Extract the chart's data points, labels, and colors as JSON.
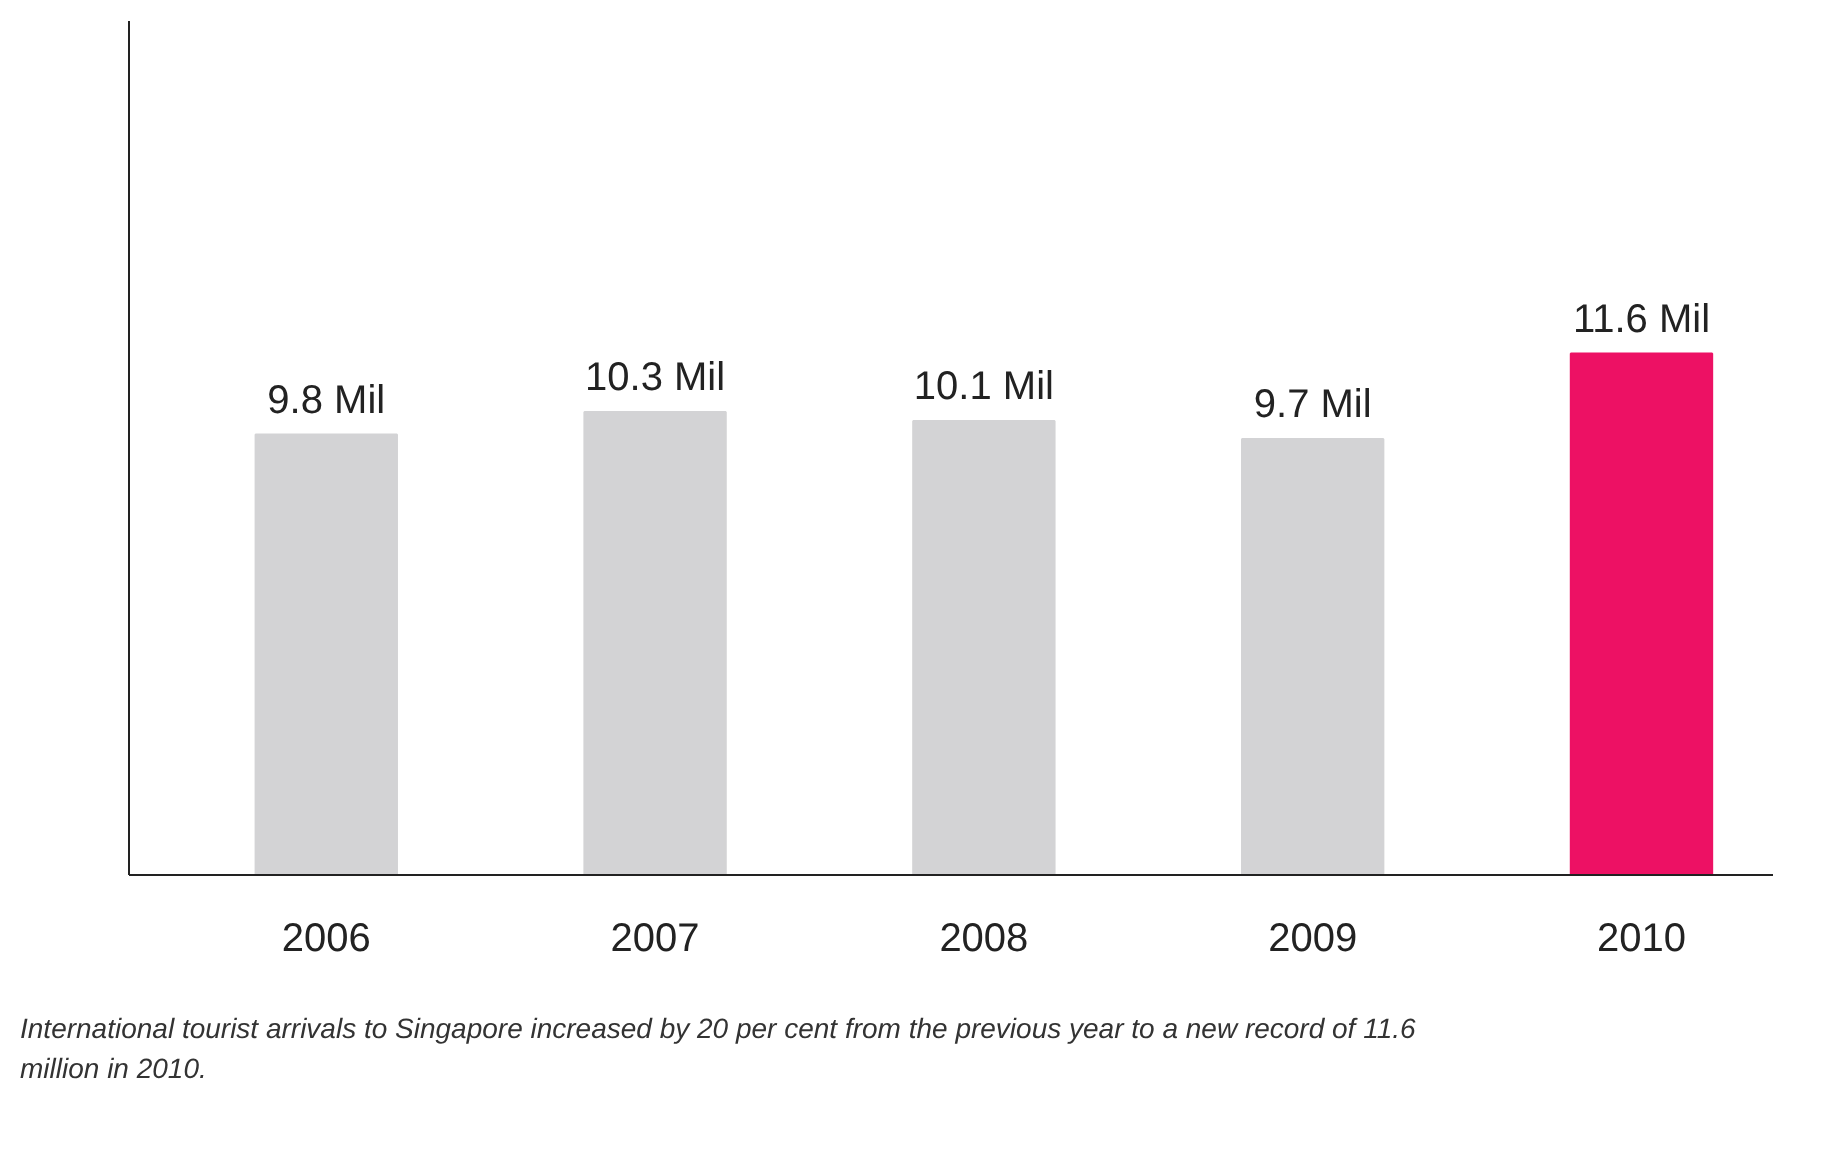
{
  "chart_data": {
    "type": "bar",
    "categories": [
      "2006",
      "2007",
      "2008",
      "2009",
      "2010"
    ],
    "values": [
      9.8,
      10.3,
      10.1,
      9.7,
      11.6
    ],
    "colors": [
      "#d3d3d5",
      "#d3d3d5",
      "#d3d3d5",
      "#d3d3d5",
      "#ed1164"
    ],
    "value_labels": [
      "9.8 Mil",
      "10.3 Mil",
      "10.1 Mil",
      "9.7 Mil",
      "11.6 Mil"
    ],
    "ylim": [
      0,
      19
    ],
    "grid": false,
    "annotations": [
      "International tourist arrivals to Singapore increased by 20 per cent from the previous year to a new record of 11.6 million in 2010."
    ]
  }
}
